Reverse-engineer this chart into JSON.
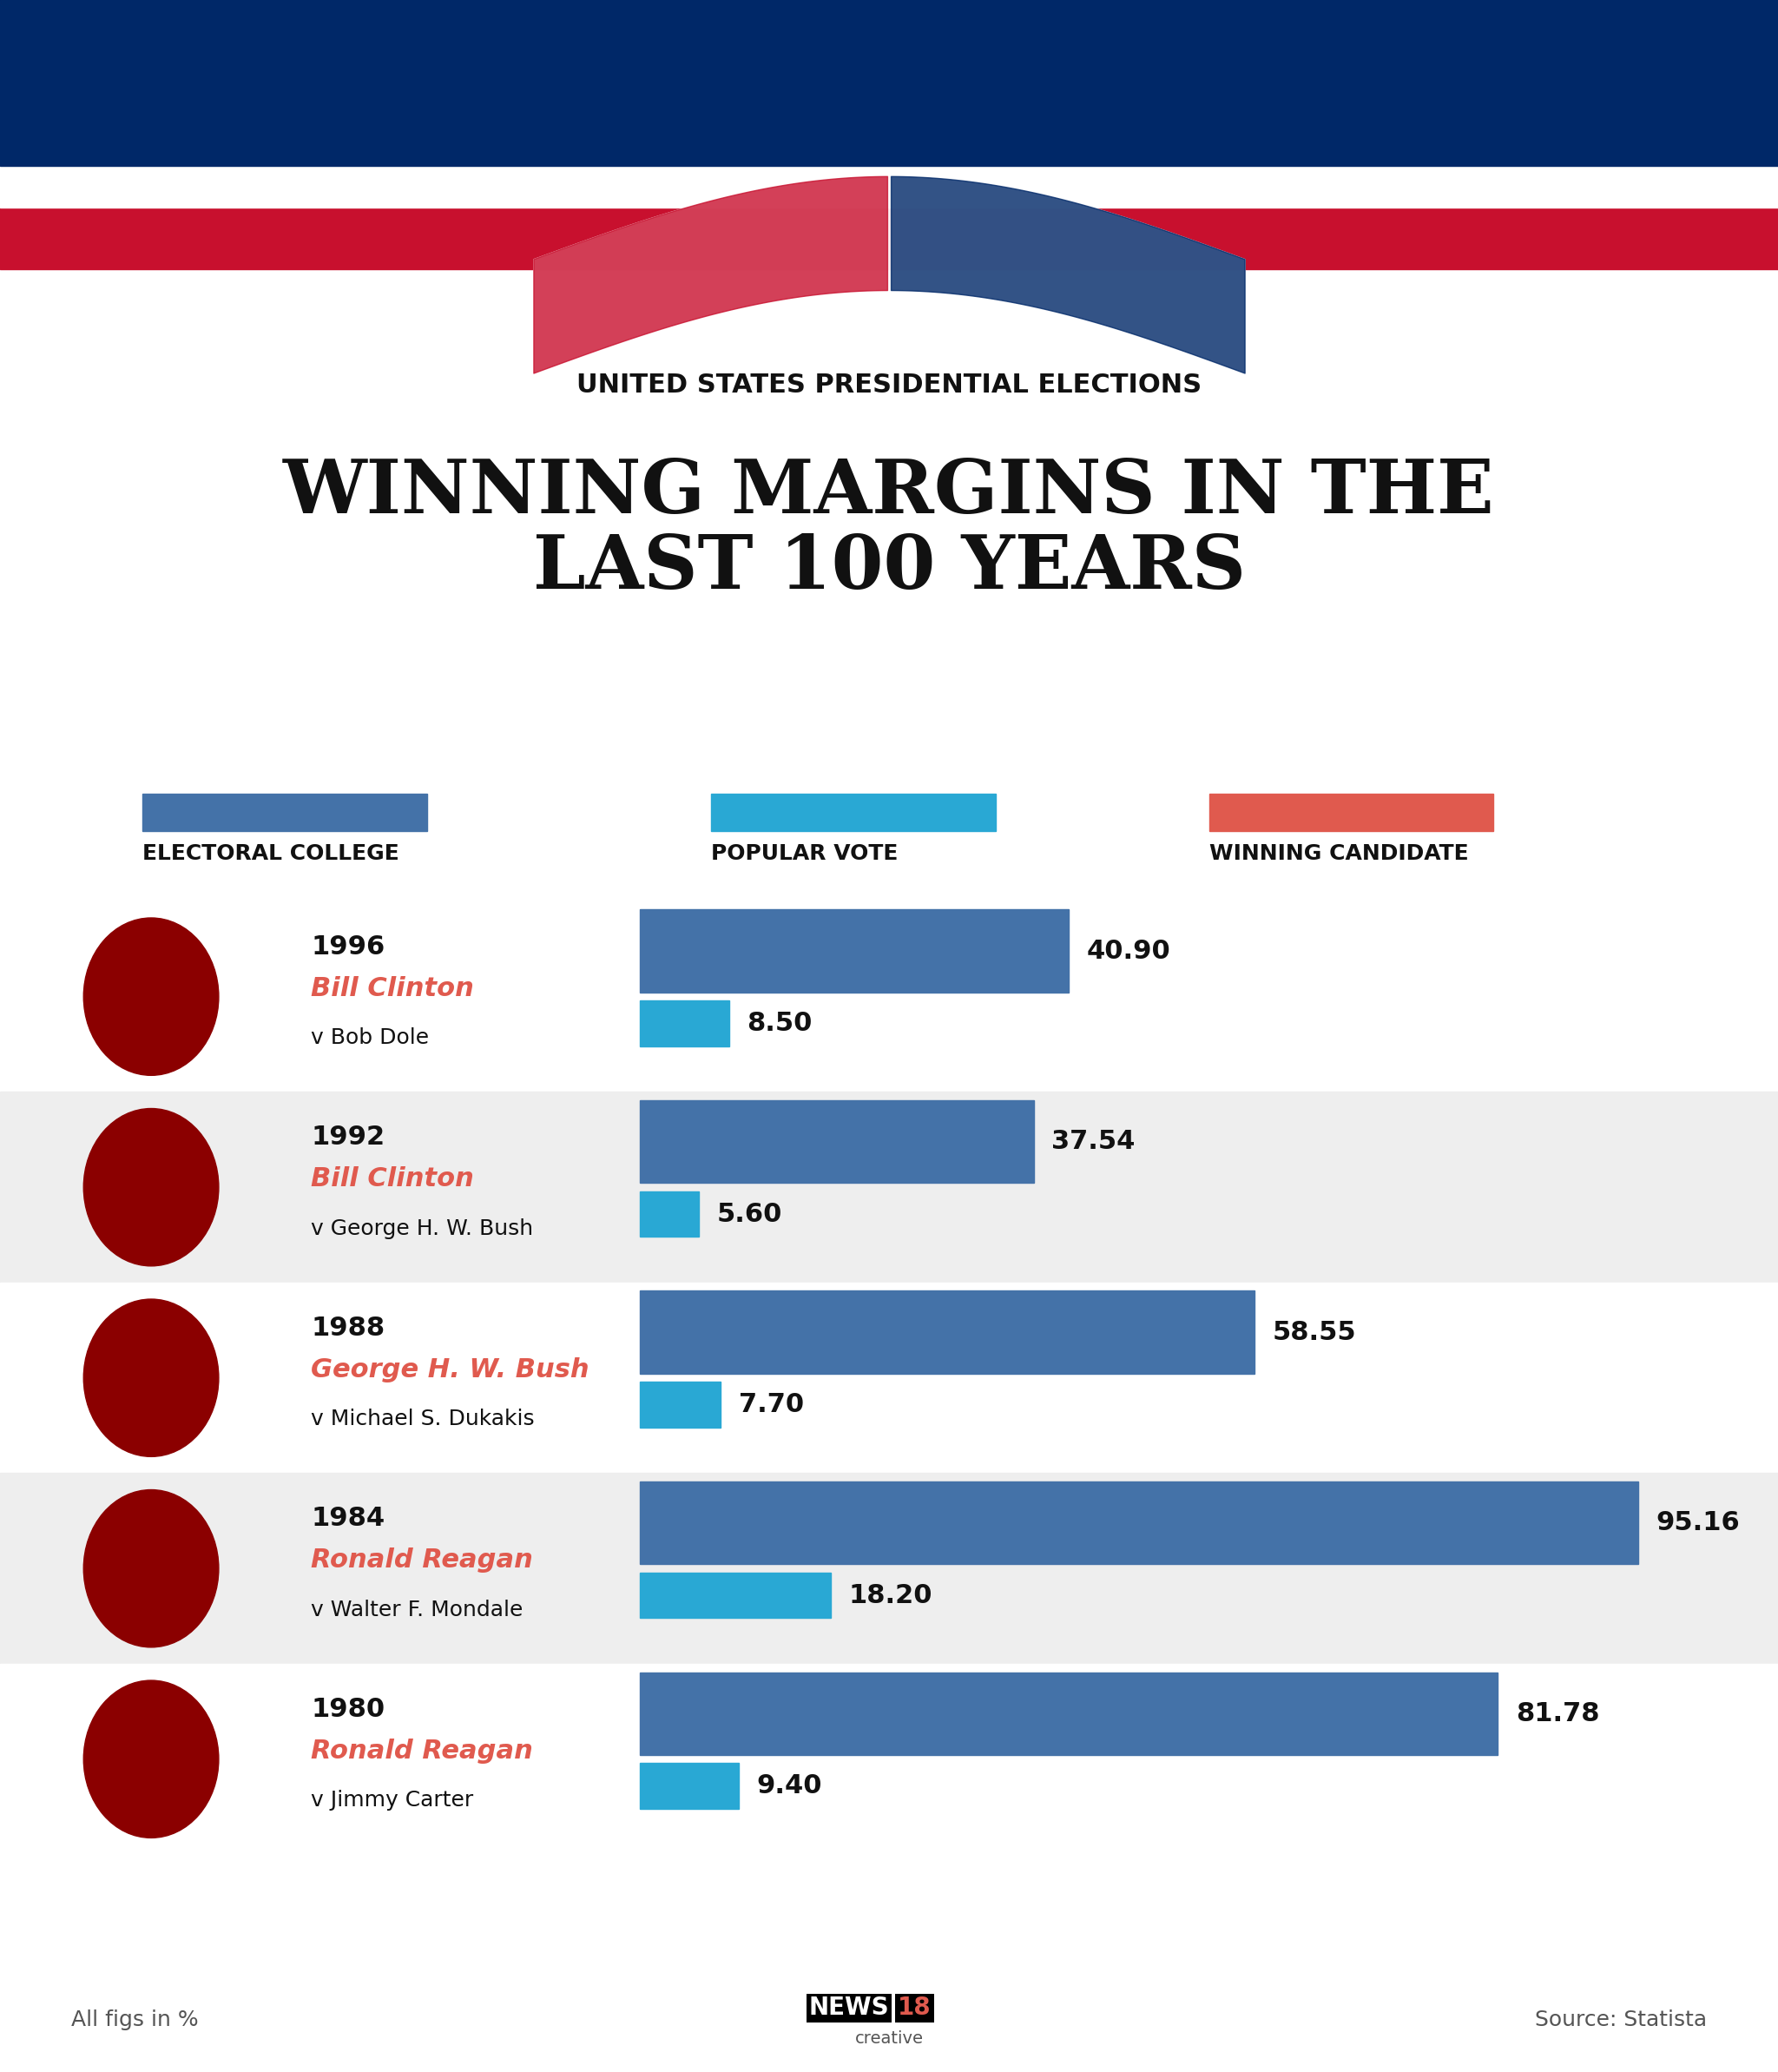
{
  "subtitle": "UNITED STATES PRESIDENTIAL ELECTIONS",
  "title": "WINNING MARGINS IN THE\nLAST 100 YEARS",
  "legend_items": [
    {
      "label": "ELECTORAL COLLEGE",
      "color": "#4472a8"
    },
    {
      "label": "POPULAR VOTE",
      "color": "#29a8d4"
    },
    {
      "label": "WINNING CANDIDATE",
      "color": "#e8574a"
    }
  ],
  "elections": [
    {
      "year": "1996",
      "winner": "Bill Clinton",
      "opponent": "v Bob Dole",
      "electoral": 40.9,
      "popular": 8.5,
      "bg": "#ffffff"
    },
    {
      "year": "1992",
      "winner": "Bill Clinton",
      "opponent": "v George H. W. Bush",
      "electoral": 37.54,
      "popular": 5.6,
      "bg": "#eeeeee"
    },
    {
      "year": "1988",
      "winner": "George H. W. Bush",
      "opponent": "v Michael S. Dukakis",
      "electoral": 58.55,
      "popular": 7.7,
      "bg": "#ffffff"
    },
    {
      "year": "1984",
      "winner": "Ronald Reagan",
      "opponent": "v Walter F. Mondale",
      "electoral": 95.16,
      "popular": 18.2,
      "bg": "#eeeeee"
    },
    {
      "year": "1980",
      "winner": "Ronald Reagan",
      "opponent": "v Jimmy Carter",
      "electoral": 81.78,
      "popular": 9.4,
      "bg": "#ffffff"
    }
  ],
  "electoral_color": "#4472a8",
  "popular_color": "#29a8d4",
  "winner_color": "#e05a4e",
  "text_color": "#111111",
  "bg_color": "#ffffff",
  "footer_left": "All figs in %",
  "footer_right": "Source: Statista",
  "max_bar": 100
}
